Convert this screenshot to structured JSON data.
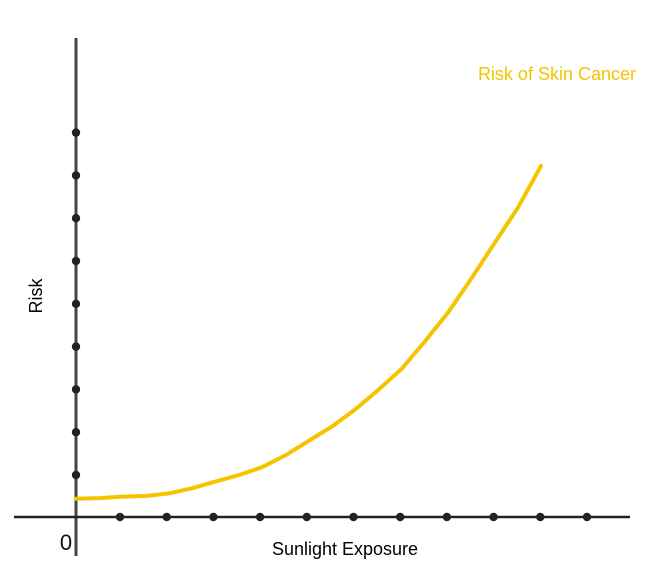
{
  "chart_data": {
    "type": "line",
    "title": "",
    "xlabel": "Sunlight Exposure",
    "ylabel": "Risk",
    "origin_label": "0",
    "series": [
      {
        "name": "Risk of Skin Cancer",
        "color": "#F5C400",
        "x": [
          0,
          0.5,
          1,
          1.5,
          2,
          2.5,
          3,
          3.5,
          4,
          4.5,
          5,
          5.5,
          6,
          6.5,
          7,
          7.5,
          8,
          8.5,
          9,
          9.5,
          10
        ],
        "y": [
          0.7,
          0.72,
          0.78,
          0.8,
          0.9,
          1.1,
          1.35,
          1.6,
          1.9,
          2.35,
          2.9,
          3.45,
          4.1,
          4.85,
          5.65,
          6.7,
          7.8,
          9.1,
          10.45,
          11.8,
          13.4
        ]
      }
    ],
    "xlim": [
      0,
      11
    ],
    "ylim": [
      0,
      16
    ],
    "x_tick_count": 11,
    "y_tick_count": 9,
    "grid": false,
    "legend_placement": "top-right",
    "axis_color": "#222222"
  }
}
